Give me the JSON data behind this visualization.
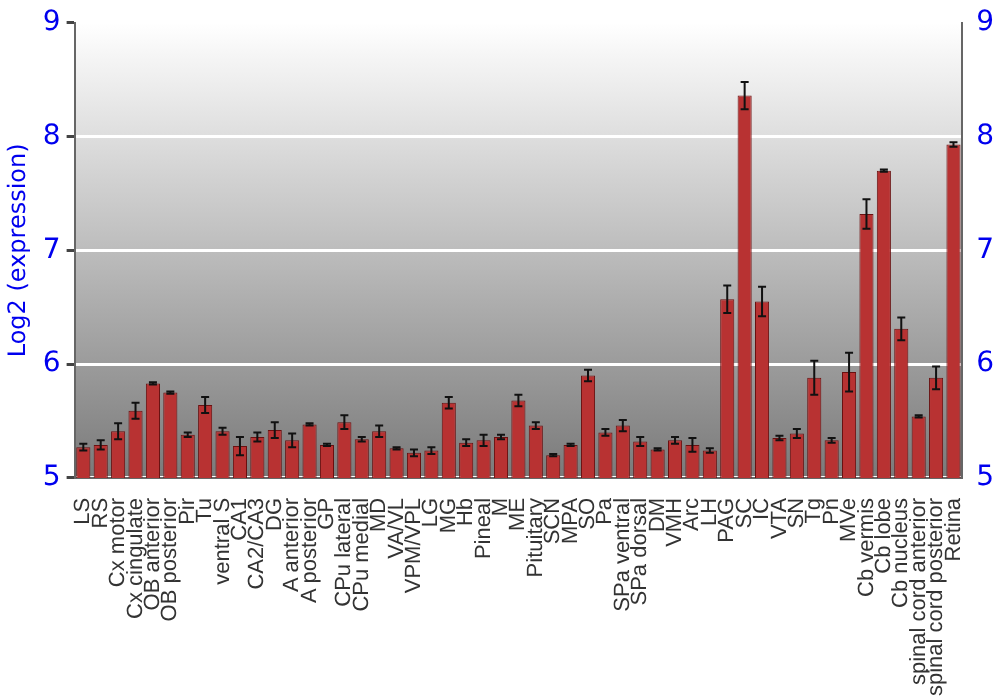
{
  "chart_data": {
    "type": "bar",
    "ylabel": "Log2 (expression)",
    "categories": [
      "LS",
      "RS",
      "Cx motor",
      "Cx cingulate",
      "OB anterior",
      "OB posterior",
      "Pir",
      "Tu",
      "ventral S",
      "CA1",
      "CA2/CA3",
      "DG",
      "A anterior",
      "A posterior",
      "GP",
      "CPu lateral",
      "CPu medial",
      "MD",
      "VA/VL",
      "VPM/VPL",
      "LG",
      "MG",
      "Hb",
      "Pineal",
      "M",
      "ME",
      "Pituitary",
      "SCN",
      "MPA",
      "SO",
      "Pa",
      "SPa ventral",
      "SPa dorsal",
      "DM",
      "VMH",
      "Arc",
      "LH",
      "PAG",
      "SC",
      "IC",
      "VTA",
      "SN",
      "Tg",
      "Pn",
      "MVe",
      "Cb vermis",
      "Cb lobe",
      "Cb nucleus",
      "spinal cord anterior",
      "spinal cord posterior",
      "Retina"
    ],
    "values": [
      5.27,
      5.29,
      5.41,
      5.59,
      5.83,
      5.75,
      5.38,
      5.64,
      5.41,
      5.28,
      5.36,
      5.42,
      5.33,
      5.47,
      5.29,
      5.49,
      5.34,
      5.41,
      5.26,
      5.22,
      5.24,
      5.66,
      5.31,
      5.33,
      5.36,
      5.68,
      5.46,
      5.2,
      5.29,
      5.9,
      5.4,
      5.46,
      5.32,
      5.25,
      5.33,
      5.29,
      5.24,
      6.57,
      8.36,
      6.55,
      5.35,
      5.39,
      5.88,
      5.33,
      5.93,
      7.32,
      7.7,
      6.31,
      5.54,
      5.88,
      7.93
    ],
    "errors": [
      0.03,
      0.04,
      0.07,
      0.07,
      0.01,
      0.01,
      0.02,
      0.07,
      0.03,
      0.08,
      0.04,
      0.07,
      0.06,
      0.01,
      0.01,
      0.06,
      0.02,
      0.05,
      0.01,
      0.03,
      0.03,
      0.05,
      0.03,
      0.05,
      0.02,
      0.05,
      0.03,
      0.01,
      0.01,
      0.05,
      0.03,
      0.05,
      0.04,
      0.01,
      0.03,
      0.06,
      0.02,
      0.12,
      0.12,
      0.13,
      0.02,
      0.04,
      0.15,
      0.02,
      0.17,
      0.13,
      0.01,
      0.1,
      0.01,
      0.1,
      0.02
    ],
    "color": "#b83232",
    "ylim": [
      5,
      9
    ],
    "yticks": [
      5,
      6,
      7,
      8,
      9
    ],
    "y2lim": [
      5,
      9
    ],
    "y2ticks": [
      5,
      6,
      7,
      8,
      9
    ],
    "grid": "y"
  }
}
